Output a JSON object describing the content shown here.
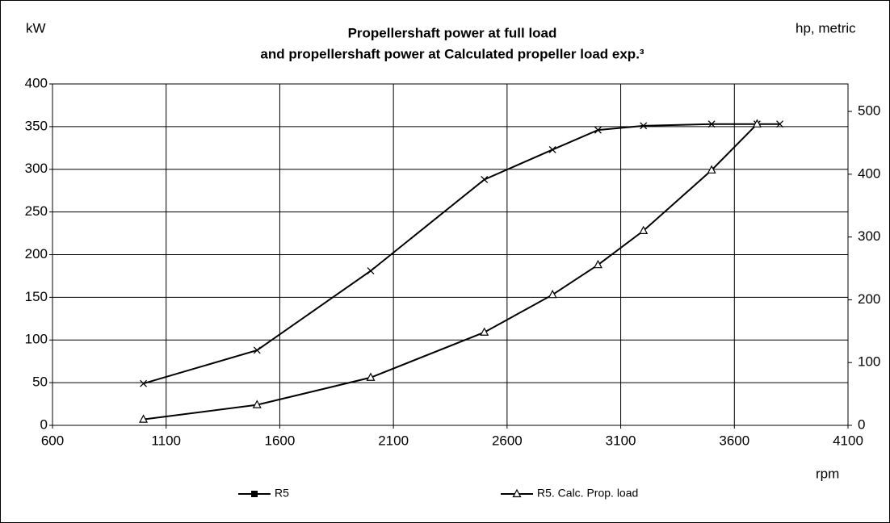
{
  "chart_data": {
    "type": "line",
    "title": [
      "Propellershaft power at full load",
      "and propellershaft power at Calculated propeller load exp.³"
    ],
    "y_label": "kW",
    "y2_label": "hp, metric",
    "x_label": "rpm",
    "xlim": [
      600,
      4100
    ],
    "xticks": [
      600,
      1100,
      1600,
      2100,
      2600,
      3100,
      3600,
      4100
    ],
    "ylim": [
      0,
      400
    ],
    "yticks": [
      0,
      50,
      100,
      150,
      200,
      250,
      300,
      350,
      400
    ],
    "y2lim": [
      0,
      543.8
    ],
    "y2ticks": [
      0,
      100,
      200,
      300,
      400,
      500
    ],
    "grid": true,
    "legend": "bottom",
    "series": [
      {
        "name": "R5",
        "color": "#000000",
        "marker": "x",
        "legend_marker": "square",
        "x": [
          1000,
          1500,
          2000,
          2500,
          2800,
          3000,
          3200,
          3500,
          3700,
          3800
        ],
        "values": [
          49,
          88,
          181,
          288,
          323,
          346,
          351,
          353,
          353,
          353
        ]
      },
      {
        "name": "R5. Calc. Prop. load",
        "color": "#000000",
        "marker": "triangle",
        "legend_marker": "triangle",
        "x": [
          1000,
          1500,
          2000,
          2500,
          2800,
          3000,
          3200,
          3500,
          3700
        ],
        "values": [
          7,
          24,
          56,
          109,
          153,
          188,
          228,
          299,
          353
        ]
      }
    ]
  }
}
